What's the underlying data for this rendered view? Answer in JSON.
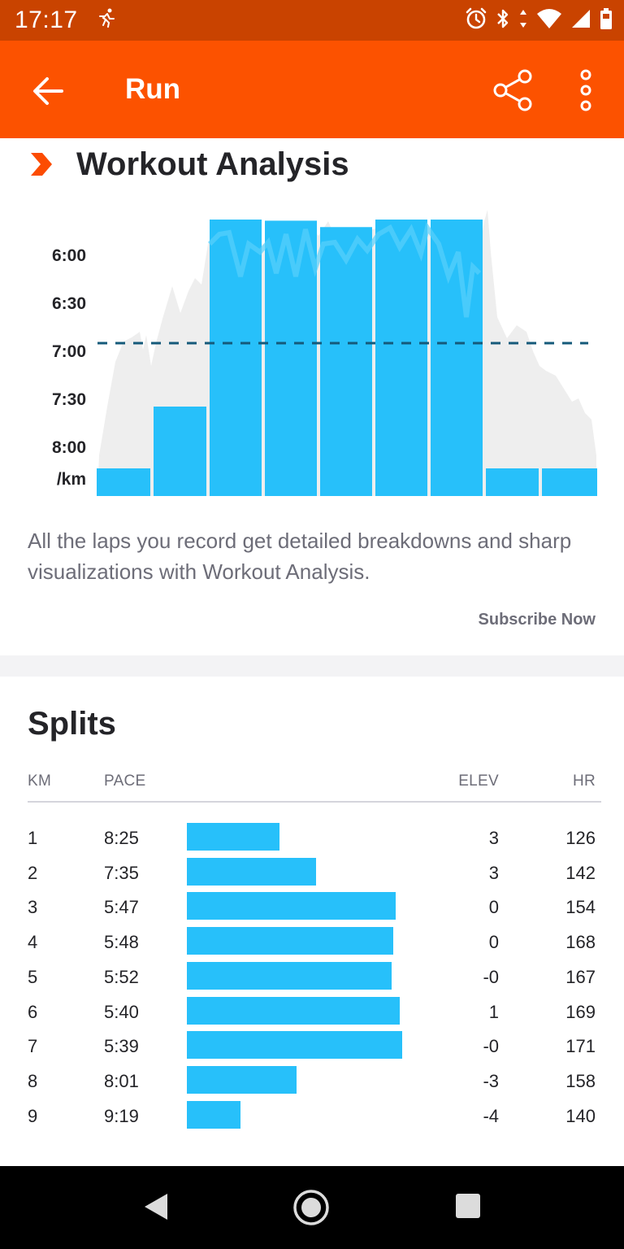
{
  "status_bar": {
    "time": "17:17",
    "icons": [
      "running-activity-icon",
      "alarm-icon",
      "bluetooth-icon",
      "data-arrows-icon",
      "wifi-icon",
      "signal-icon",
      "battery-icon"
    ]
  },
  "app_bar": {
    "title": "Run",
    "actions": [
      "back-arrow-icon",
      "share-icon",
      "more-vert-icon"
    ],
    "color": "#fc5200"
  },
  "workout_analysis": {
    "title": "Workout Analysis",
    "description": "All the laps you record get detailed breakdowns and sharp visualizations with Workout Analysis.",
    "subscribe_label": "Subscribe Now"
  },
  "chart_data": {
    "type": "bar",
    "y_tick_labels": [
      "6:00",
      "6:30",
      "7:00",
      "7:30",
      "8:00",
      "/km"
    ],
    "y_ticks_seconds": [
      360,
      390,
      420,
      450,
      480
    ],
    "y_axis_inverted": true,
    "average_line_pace": "7:05",
    "average_line_seconds": 425,
    "bars": [
      {
        "lap": 1,
        "pace": "8:25",
        "seconds": 505
      },
      {
        "lap": 2,
        "pace": "7:35",
        "seconds": 455
      },
      {
        "lap": 3,
        "pace": "5:47",
        "seconds": 347
      },
      {
        "lap": 4,
        "pace": "5:48",
        "seconds": 348
      },
      {
        "lap": 5,
        "pace": "5:52",
        "seconds": 352
      },
      {
        "lap": 6,
        "pace": "5:40",
        "seconds": 340
      },
      {
        "lap": 7,
        "pace": "5:39",
        "seconds": 339
      },
      {
        "lap": 8,
        "pace": "8:01",
        "seconds": 481
      },
      {
        "lap": 9,
        "pace": "9:19",
        "seconds": 559
      }
    ],
    "bar_color": "#27c0fa",
    "average_line_color": "#155a7a",
    "background_area_color": "#eeeeee"
  },
  "splits": {
    "title": "Splits",
    "headers": {
      "km": "KM",
      "pace": "PACE",
      "elev": "ELEV",
      "hr": "HR"
    },
    "rows": [
      {
        "km": "1",
        "pace": "8:25",
        "pace_fraction": 0.43,
        "elev": "3",
        "hr": "126"
      },
      {
        "km": "2",
        "pace": "7:35",
        "pace_fraction": 0.6,
        "elev": "3",
        "hr": "142"
      },
      {
        "km": "3",
        "pace": "5:47",
        "pace_fraction": 0.97,
        "elev": "0",
        "hr": "154"
      },
      {
        "km": "4",
        "pace": "5:48",
        "pace_fraction": 0.96,
        "elev": "0",
        "hr": "168"
      },
      {
        "km": "5",
        "pace": "5:52",
        "pace_fraction": 0.95,
        "elev": "-0",
        "hr": "167"
      },
      {
        "km": "6",
        "pace": "5:40",
        "pace_fraction": 0.99,
        "elev": "1",
        "hr": "169"
      },
      {
        "km": "7",
        "pace": "5:39",
        "pace_fraction": 1.0,
        "elev": "-0",
        "hr": "171"
      },
      {
        "km": "8",
        "pace": "8:01",
        "pace_fraction": 0.51,
        "elev": "-3",
        "hr": "158"
      },
      {
        "km": "9",
        "pace": "9:19",
        "pace_fraction": 0.25,
        "elev": "-4",
        "hr": "140"
      }
    ]
  },
  "nav_bar": {
    "buttons": [
      "nav-back-icon",
      "nav-home-icon",
      "nav-recents-icon"
    ]
  }
}
